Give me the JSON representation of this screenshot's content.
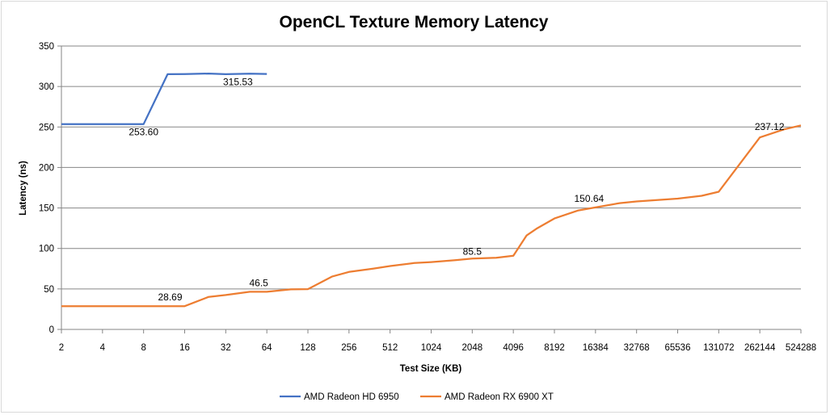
{
  "chart_data": {
    "type": "line",
    "title": "OpenCL Texture Memory Latency",
    "xlabel": "Test Size  (KB)",
    "ylabel": "Latency (ns)",
    "ylim": [
      0,
      350
    ],
    "yticks": [
      0,
      50,
      100,
      150,
      200,
      250,
      300,
      350
    ],
    "x_scale": "log2",
    "xticks": [
      "2",
      "4",
      "8",
      "16",
      "32",
      "64",
      "128",
      "256",
      "512",
      "1024",
      "2048",
      "4096",
      "8192",
      "16384",
      "32768",
      "65536",
      "131072",
      "262144",
      "524288"
    ],
    "grid": "horizontal",
    "legend_position": "bottom",
    "series": [
      {
        "name": "AMD Radeon  HD 6950",
        "color": "#4472c4",
        "x": [
          2,
          3,
          4,
          6,
          8,
          12,
          16,
          24,
          32,
          48,
          64
        ],
        "y": [
          253.6,
          253.6,
          253.6,
          253.6,
          253.6,
          315.2,
          315.3,
          316.0,
          315.2,
          315.8,
          315.53
        ]
      },
      {
        "name": "AMD Radeon  RX 6900 XT",
        "color": "#ed7d31",
        "x": [
          2,
          4,
          8,
          12,
          16,
          24,
          32,
          48,
          64,
          96,
          128,
          192,
          256,
          384,
          512,
          768,
          1024,
          1536,
          2048,
          3072,
          4096,
          5120,
          6144,
          8192,
          12288,
          16384,
          24576,
          32768,
          65536,
          98304,
          131072,
          262144,
          393216,
          524288
        ],
        "y": [
          28.69,
          28.69,
          28.69,
          28.69,
          28.69,
          40.2,
          42.5,
          46.5,
          46.5,
          49.5,
          49.8,
          65.2,
          71.0,
          75.0,
          78.3,
          82.0,
          83.2,
          85.5,
          87.5,
          88.5,
          91.0,
          116.0,
          125.0,
          137.0,
          147.0,
          150.64,
          156.0,
          158.0,
          161.5,
          165.0,
          170.0,
          237.12,
          247.0,
          252.0
        ]
      }
    ],
    "annotations": [
      {
        "series": 0,
        "x": 8,
        "y": 253.6,
        "text": "253.60"
      },
      {
        "series": 0,
        "x": 45,
        "y": 315.53,
        "text": "315.53"
      },
      {
        "series": 1,
        "x": 16,
        "y": 28.69,
        "text": "28.69"
      },
      {
        "series": 1,
        "x": 64,
        "y": 46.5,
        "text": "46.5"
      },
      {
        "series": 1,
        "x": 2048,
        "y": 85.5,
        "text": "85.5"
      },
      {
        "series": 1,
        "x": 16384,
        "y": 150.64,
        "text": "150.64"
      },
      {
        "series": 1,
        "x": 262144,
        "y": 237.12,
        "text": "237.12"
      }
    ]
  }
}
